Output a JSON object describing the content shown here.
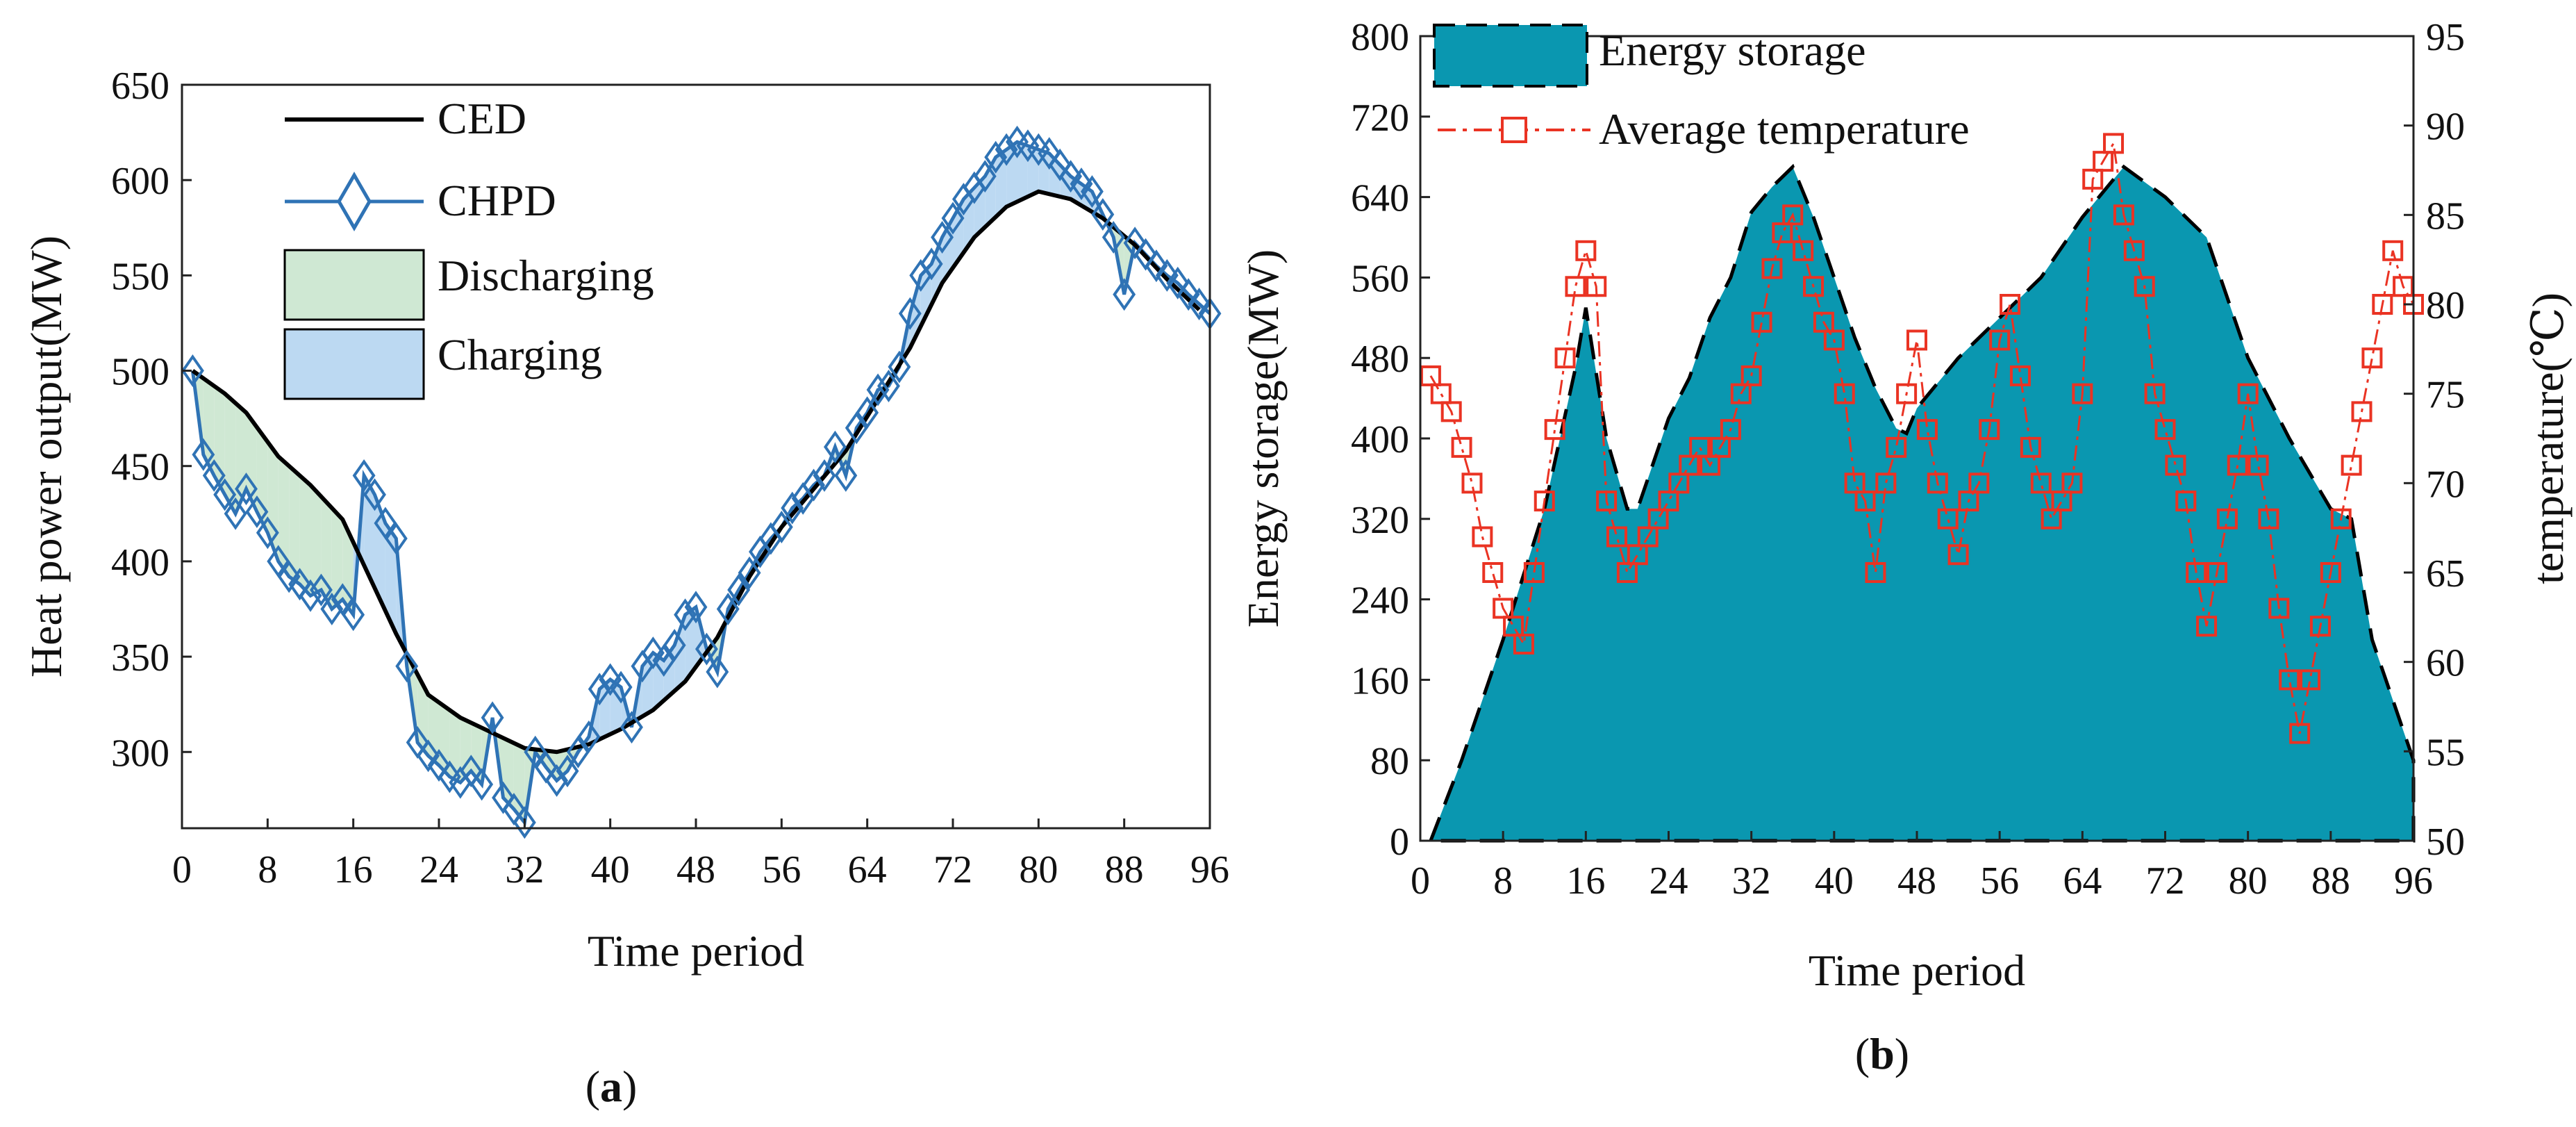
{
  "colors": {
    "ced": "#000000",
    "chpd": "#2f73b5",
    "discharging": "#cfe8d3",
    "charging": "#bcd9f2",
    "energy_storage": "#0a97b0",
    "temperature": "#ea3323"
  },
  "chart_data": [
    {
      "id": "a",
      "type": "line",
      "caption_open": "(",
      "caption_letter": "a",
      "caption_close": ")",
      "xlabel": "Time period",
      "ylabel": "Heat power output(MW)",
      "xlim": [
        0,
        96
      ],
      "ylim": [
        260,
        650
      ],
      "xticks": [
        0,
        8,
        16,
        24,
        32,
        40,
        48,
        56,
        64,
        72,
        80,
        88,
        96
      ],
      "yticks": [
        300,
        350,
        400,
        450,
        500,
        550,
        600,
        650
      ],
      "legend": {
        "position": "top-left",
        "entries": [
          "CED",
          "CHPD",
          "Discharging",
          "Charging"
        ]
      },
      "series": [
        {
          "name": "CED",
          "x": [
            1,
            4,
            6,
            9,
            12,
            15,
            17,
            20,
            23,
            26,
            29,
            32,
            35,
            38,
            41,
            44,
            47,
            50,
            53,
            56,
            59,
            62,
            65,
            68,
            71,
            74,
            77,
            80,
            83,
            86,
            89,
            92,
            95
          ],
          "values": [
            500,
            488,
            478,
            455,
            440,
            422,
            398,
            362,
            330,
            318,
            310,
            302,
            300,
            304,
            312,
            322,
            337,
            360,
            392,
            418,
            438,
            458,
            485,
            512,
            546,
            570,
            586,
            594,
            590,
            580,
            566,
            548,
            532
          ]
        },
        {
          "name": "CHPD",
          "x": [
            1,
            2,
            3,
            4,
            5,
            6,
            7,
            8,
            9,
            10,
            11,
            12,
            13,
            14,
            15,
            16,
            17,
            18,
            19,
            20,
            21,
            22,
            23,
            24,
            25,
            26,
            27,
            28,
            29,
            30,
            31,
            32,
            33,
            34,
            35,
            36,
            37,
            38,
            39,
            40,
            41,
            42,
            43,
            44,
            45,
            46,
            47,
            48,
            49,
            50,
            51,
            52,
            53,
            54,
            55,
            56,
            57,
            58,
            59,
            60,
            61,
            62,
            63,
            64,
            65,
            66,
            67,
            68,
            69,
            70,
            71,
            72,
            73,
            74,
            75,
            76,
            77,
            78,
            79,
            80,
            81,
            82,
            83,
            84,
            85,
            86,
            87,
            88,
            89,
            90,
            91,
            92,
            93,
            94,
            95,
            96
          ],
          "values": [
            500,
            456,
            445,
            435,
            425,
            438,
            426,
            415,
            400,
            392,
            388,
            382,
            385,
            375,
            380,
            372,
            445,
            435,
            420,
            412,
            345,
            305,
            298,
            293,
            287,
            284,
            290,
            283,
            318,
            276,
            270,
            263,
            300,
            292,
            285,
            290,
            300,
            308,
            333,
            338,
            334,
            313,
            345,
            352,
            348,
            356,
            372,
            376,
            354,
            342,
            375,
            385,
            394,
            405,
            412,
            418,
            428,
            433,
            440,
            445,
            460,
            445,
            470,
            478,
            490,
            492,
            502,
            530,
            550,
            556,
            570,
            580,
            590,
            596,
            602,
            612,
            616,
            620,
            618,
            616,
            614,
            608,
            602,
            598,
            594,
            582,
            570,
            540,
            567,
            561,
            555,
            550,
            546,
            540,
            535,
            530
          ]
        }
      ]
    },
    {
      "id": "b",
      "type": "area",
      "caption_open": "(",
      "caption_letter": "b",
      "caption_close": ")",
      "xlabel": "Time period",
      "ylabel": "Energy storage(MW)",
      "ylabel_right": "temperature(℃)",
      "xlim": [
        0,
        96
      ],
      "ylim": [
        0,
        800
      ],
      "ylim_right": [
        50,
        95
      ],
      "xticks": [
        0,
        8,
        16,
        24,
        32,
        40,
        48,
        56,
        64,
        72,
        80,
        88,
        96
      ],
      "yticks": [
        0,
        80,
        160,
        240,
        320,
        400,
        480,
        560,
        640,
        720,
        800
      ],
      "yticks_right": [
        50,
        55,
        60,
        65,
        70,
        75,
        80,
        85,
        90,
        95
      ],
      "legend": {
        "position": "top-left",
        "entries": [
          "Energy storage",
          "Average temperature"
        ]
      },
      "series": [
        {
          "name": "Energy storage",
          "axis": "left",
          "x": [
            1,
            4,
            8,
            12,
            15,
            16,
            18,
            20,
            21,
            24,
            26,
            28,
            30,
            32,
            34,
            36,
            38,
            40,
            42,
            44,
            46,
            47,
            48,
            52,
            56,
            60,
            64,
            68,
            72,
            76,
            80,
            84,
            88,
            90,
            92,
            96
          ],
          "values": [
            0,
            80,
            200,
            330,
            470,
            530,
            400,
            330,
            330,
            420,
            460,
            520,
            560,
            625,
            650,
            670,
            620,
            560,
            500,
            450,
            410,
            405,
            430,
            480,
            520,
            560,
            620,
            670,
            640,
            600,
            480,
            400,
            330,
            320,
            200,
            80
          ]
        },
        {
          "name": "Average temperature",
          "axis": "right",
          "x": [
            1,
            2,
            3,
            4,
            5,
            6,
            7,
            8,
            9,
            10,
            11,
            12,
            13,
            14,
            15,
            16,
            17,
            18,
            19,
            20,
            21,
            22,
            23,
            24,
            25,
            26,
            27,
            28,
            29,
            30,
            31,
            32,
            33,
            34,
            35,
            36,
            37,
            38,
            39,
            40,
            41,
            42,
            43,
            44,
            45,
            46,
            47,
            48,
            49,
            50,
            51,
            52,
            53,
            54,
            55,
            56,
            57,
            58,
            59,
            60,
            61,
            62,
            63,
            64,
            65,
            66,
            67,
            68,
            69,
            70,
            71,
            72,
            73,
            74,
            75,
            76,
            77,
            78,
            79,
            80,
            81,
            82,
            83,
            84,
            85,
            86,
            87,
            88,
            89,
            90,
            91,
            92,
            93,
            94,
            95,
            96
          ],
          "values": [
            76,
            75,
            74,
            72,
            70,
            67,
            65,
            63,
            62,
            61,
            65,
            69,
            73,
            77,
            81,
            83,
            81,
            69,
            67,
            65,
            66,
            67,
            68,
            69,
            70,
            71,
            72,
            71,
            72,
            73,
            75,
            76,
            79,
            82,
            84,
            85,
            83,
            81,
            79,
            78,
            75,
            70,
            69,
            65,
            70,
            72,
            75,
            78,
            73,
            70,
            68,
            66,
            69,
            70,
            73,
            78,
            80,
            76,
            72,
            70,
            68,
            69,
            70,
            75,
            87,
            88,
            89,
            85,
            83,
            81,
            75,
            73,
            71,
            69,
            65,
            62,
            65,
            68,
            71,
            75,
            71,
            68,
            63,
            59,
            56,
            59,
            62,
            65,
            68,
            71,
            74,
            77,
            80,
            83,
            81,
            80
          ]
        }
      ]
    }
  ]
}
